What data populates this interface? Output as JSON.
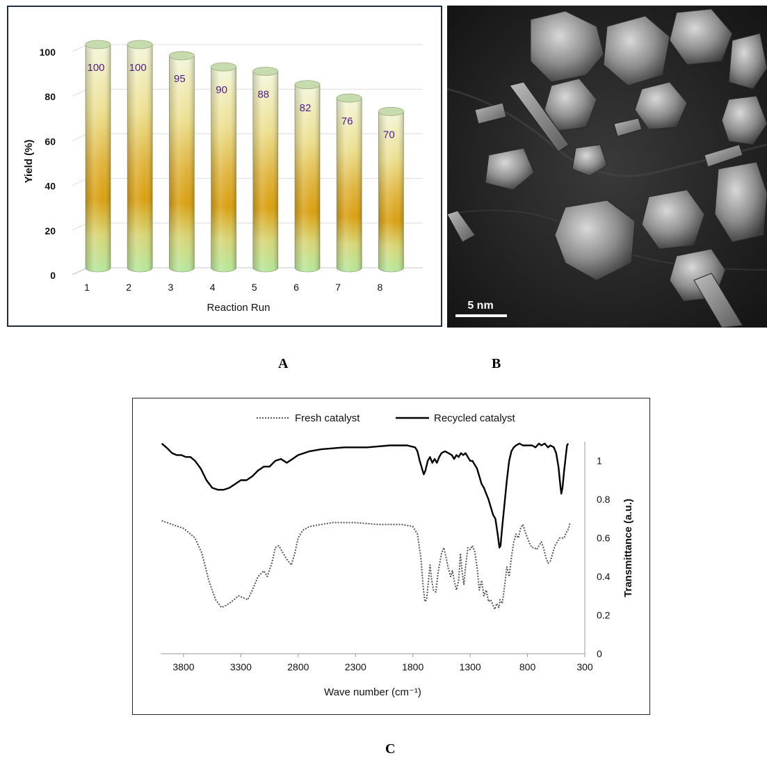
{
  "chart_data": [
    {
      "panel": "A",
      "type": "bar",
      "style": "3d-cylinder",
      "title": "",
      "xlabel": "Reaction Run",
      "ylabel": "Yield (%)",
      "categories": [
        "1",
        "2",
        "3",
        "4",
        "5",
        "6",
        "7",
        "8"
      ],
      "values": [
        100,
        100,
        95,
        90,
        88,
        82,
        76,
        70
      ],
      "data_labels": [
        "100",
        "100",
        "95",
        "90",
        "88",
        "82",
        "76",
        "70"
      ],
      "yticks": [
        "0",
        "20",
        "40",
        "60",
        "80",
        "100"
      ],
      "ylim": [
        0,
        100
      ],
      "grid": true,
      "label_color": "#4b1a8c",
      "bar_colors": {
        "top": "#f4f6d8",
        "mid": "#d9a10e",
        "bottom": "#b9e8a0"
      }
    },
    {
      "panel": "C",
      "type": "line",
      "title": "",
      "xlabel": "Wave number (cm⁻¹)",
      "ylabel": "Transmittance (a.u.)",
      "xticks": [
        "3800",
        "3300",
        "2800",
        "2300",
        "1800",
        "1300",
        "800",
        "300"
      ],
      "yticks": [
        "0",
        "0.2",
        "0.4",
        "0.6",
        "0.8",
        "1"
      ],
      "xlim": [
        4000,
        300
      ],
      "x_reversed": true,
      "ylim": [
        0,
        1.1
      ],
      "legend_position": "top",
      "series": [
        {
          "name": "Fresh catalyst",
          "style": "dotted",
          "color": "#555555",
          "points": [
            [
              3990,
              0.69
            ],
            [
              3900,
              0.67
            ],
            [
              3800,
              0.65
            ],
            [
              3700,
              0.6
            ],
            [
              3640,
              0.52
            ],
            [
              3580,
              0.38
            ],
            [
              3520,
              0.28
            ],
            [
              3470,
              0.24
            ],
            [
              3430,
              0.25
            ],
            [
              3380,
              0.27
            ],
            [
              3320,
              0.3
            ],
            [
              3280,
              0.29
            ],
            [
              3240,
              0.28
            ],
            [
              3200,
              0.33
            ],
            [
              3150,
              0.4
            ],
            [
              3100,
              0.43
            ],
            [
              3070,
              0.4
            ],
            [
              3030,
              0.47
            ],
            [
              3000,
              0.55
            ],
            [
              2970,
              0.56
            ],
            [
              2930,
              0.52
            ],
            [
              2900,
              0.49
            ],
            [
              2860,
              0.46
            ],
            [
              2830,
              0.52
            ],
            [
              2800,
              0.6
            ],
            [
              2760,
              0.64
            ],
            [
              2700,
              0.66
            ],
            [
              2600,
              0.67
            ],
            [
              2500,
              0.68
            ],
            [
              2300,
              0.68
            ],
            [
              2100,
              0.67
            ],
            [
              1900,
              0.67
            ],
            [
              1800,
              0.66
            ],
            [
              1760,
              0.62
            ],
            [
              1730,
              0.5
            ],
            [
              1710,
              0.35
            ],
            [
              1695,
              0.27
            ],
            [
              1680,
              0.28
            ],
            [
              1660,
              0.4
            ],
            [
              1650,
              0.46
            ],
            [
              1635,
              0.38
            ],
            [
              1620,
              0.33
            ],
            [
              1600,
              0.32
            ],
            [
              1580,
              0.42
            ],
            [
              1550,
              0.52
            ],
            [
              1530,
              0.55
            ],
            [
              1510,
              0.5
            ],
            [
              1490,
              0.44
            ],
            [
              1470,
              0.4
            ],
            [
              1455,
              0.43
            ],
            [
              1440,
              0.38
            ],
            [
              1420,
              0.33
            ],
            [
              1400,
              0.38
            ],
            [
              1385,
              0.52
            ],
            [
              1370,
              0.42
            ],
            [
              1355,
              0.36
            ],
            [
              1340,
              0.45
            ],
            [
              1320,
              0.55
            ],
            [
              1300,
              0.54
            ],
            [
              1280,
              0.56
            ],
            [
              1260,
              0.53
            ],
            [
              1240,
              0.45
            ],
            [
              1220,
              0.33
            ],
            [
              1200,
              0.38
            ],
            [
              1180,
              0.3
            ],
            [
              1160,
              0.33
            ],
            [
              1140,
              0.27
            ],
            [
              1120,
              0.28
            ],
            [
              1100,
              0.25
            ],
            [
              1085,
              0.23
            ],
            [
              1070,
              0.26
            ],
            [
              1050,
              0.24
            ],
            [
              1040,
              0.28
            ],
            [
              1020,
              0.26
            ],
            [
              1000,
              0.35
            ],
            [
              980,
              0.45
            ],
            [
              960,
              0.4
            ],
            [
              940,
              0.5
            ],
            [
              920,
              0.58
            ],
            [
              900,
              0.62
            ],
            [
              880,
              0.6
            ],
            [
              860,
              0.65
            ],
            [
              840,
              0.67
            ],
            [
              820,
              0.63
            ],
            [
              800,
              0.6
            ],
            [
              780,
              0.57
            ],
            [
              760,
              0.55
            ],
            [
              740,
              0.55
            ],
            [
              720,
              0.54
            ],
            [
              700,
              0.56
            ],
            [
              680,
              0.58
            ],
            [
              660,
              0.55
            ],
            [
              640,
              0.5
            ],
            [
              620,
              0.47
            ],
            [
              600,
              0.48
            ],
            [
              580,
              0.52
            ],
            [
              560,
              0.56
            ],
            [
              540,
              0.58
            ],
            [
              520,
              0.6
            ],
            [
              500,
              0.6
            ],
            [
              480,
              0.6
            ],
            [
              460,
              0.63
            ],
            [
              440,
              0.65
            ],
            [
              430,
              0.68
            ]
          ]
        },
        {
          "name": "Recycled catalyst",
          "style": "solid",
          "color": "#000000",
          "points": [
            [
              3990,
              1.09
            ],
            [
              3950,
              1.07
            ],
            [
              3900,
              1.04
            ],
            [
              3860,
              1.03
            ],
            [
              3820,
              1.03
            ],
            [
              3780,
              1.02
            ],
            [
              3740,
              1.02
            ],
            [
              3700,
              1.0
            ],
            [
              3650,
              0.96
            ],
            [
              3600,
              0.9
            ],
            [
              3550,
              0.86
            ],
            [
              3500,
              0.85
            ],
            [
              3450,
              0.85
            ],
            [
              3400,
              0.86
            ],
            [
              3350,
              0.88
            ],
            [
              3300,
              0.9
            ],
            [
              3250,
              0.9
            ],
            [
              3200,
              0.92
            ],
            [
              3150,
              0.95
            ],
            [
              3100,
              0.97
            ],
            [
              3050,
              0.97
            ],
            [
              3000,
              1.0
            ],
            [
              2950,
              1.01
            ],
            [
              2900,
              0.99
            ],
            [
              2850,
              1.01
            ],
            [
              2800,
              1.03
            ],
            [
              2750,
              1.04
            ],
            [
              2700,
              1.05
            ],
            [
              2600,
              1.06
            ],
            [
              2400,
              1.07
            ],
            [
              2200,
              1.07
            ],
            [
              2000,
              1.08
            ],
            [
              1850,
              1.08
            ],
            [
              1780,
              1.07
            ],
            [
              1760,
              1.05
            ],
            [
              1740,
              1.0
            ],
            [
              1720,
              0.96
            ],
            [
              1705,
              0.93
            ],
            [
              1690,
              0.95
            ],
            [
              1670,
              1.0
            ],
            [
              1650,
              1.02
            ],
            [
              1630,
              0.99
            ],
            [
              1610,
              1.01
            ],
            [
              1590,
              0.99
            ],
            [
              1570,
              1.02
            ],
            [
              1550,
              1.04
            ],
            [
              1520,
              1.05
            ],
            [
              1490,
              1.04
            ],
            [
              1460,
              1.03
            ],
            [
              1440,
              1.01
            ],
            [
              1420,
              1.03
            ],
            [
              1400,
              1.02
            ],
            [
              1380,
              1.04
            ],
            [
              1360,
              1.03
            ],
            [
              1340,
              1.04
            ],
            [
              1320,
              1.02
            ],
            [
              1300,
              1.0
            ],
            [
              1280,
              1.0
            ],
            [
              1260,
              0.98
            ],
            [
              1240,
              0.96
            ],
            [
              1220,
              0.92
            ],
            [
              1200,
              0.88
            ],
            [
              1180,
              0.86
            ],
            [
              1160,
              0.83
            ],
            [
              1140,
              0.8
            ],
            [
              1120,
              0.76
            ],
            [
              1100,
              0.72
            ],
            [
              1080,
              0.7
            ],
            [
              1060,
              0.62
            ],
            [
              1045,
              0.55
            ],
            [
              1035,
              0.56
            ],
            [
              1020,
              0.66
            ],
            [
              1000,
              0.78
            ],
            [
              980,
              0.9
            ],
            [
              960,
              1.0
            ],
            [
              940,
              1.05
            ],
            [
              920,
              1.07
            ],
            [
              900,
              1.08
            ],
            [
              870,
              1.09
            ],
            [
              840,
              1.08
            ],
            [
              800,
              1.08
            ],
            [
              760,
              1.08
            ],
            [
              730,
              1.07
            ],
            [
              700,
              1.09
            ],
            [
              680,
              1.08
            ],
            [
              650,
              1.09
            ],
            [
              620,
              1.07
            ],
            [
              600,
              1.08
            ],
            [
              570,
              1.07
            ],
            [
              550,
              1.04
            ],
            [
              530,
              0.97
            ],
            [
              515,
              0.88
            ],
            [
              505,
              0.83
            ],
            [
              495,
              0.86
            ],
            [
              480,
              0.95
            ],
            [
              465,
              1.03
            ],
            [
              455,
              1.08
            ],
            [
              445,
              1.09
            ]
          ]
        }
      ]
    }
  ],
  "captions": {
    "a": "A",
    "b": "B",
    "c": "C"
  },
  "micrograph": {
    "scale_bar_label": "5 nm"
  }
}
